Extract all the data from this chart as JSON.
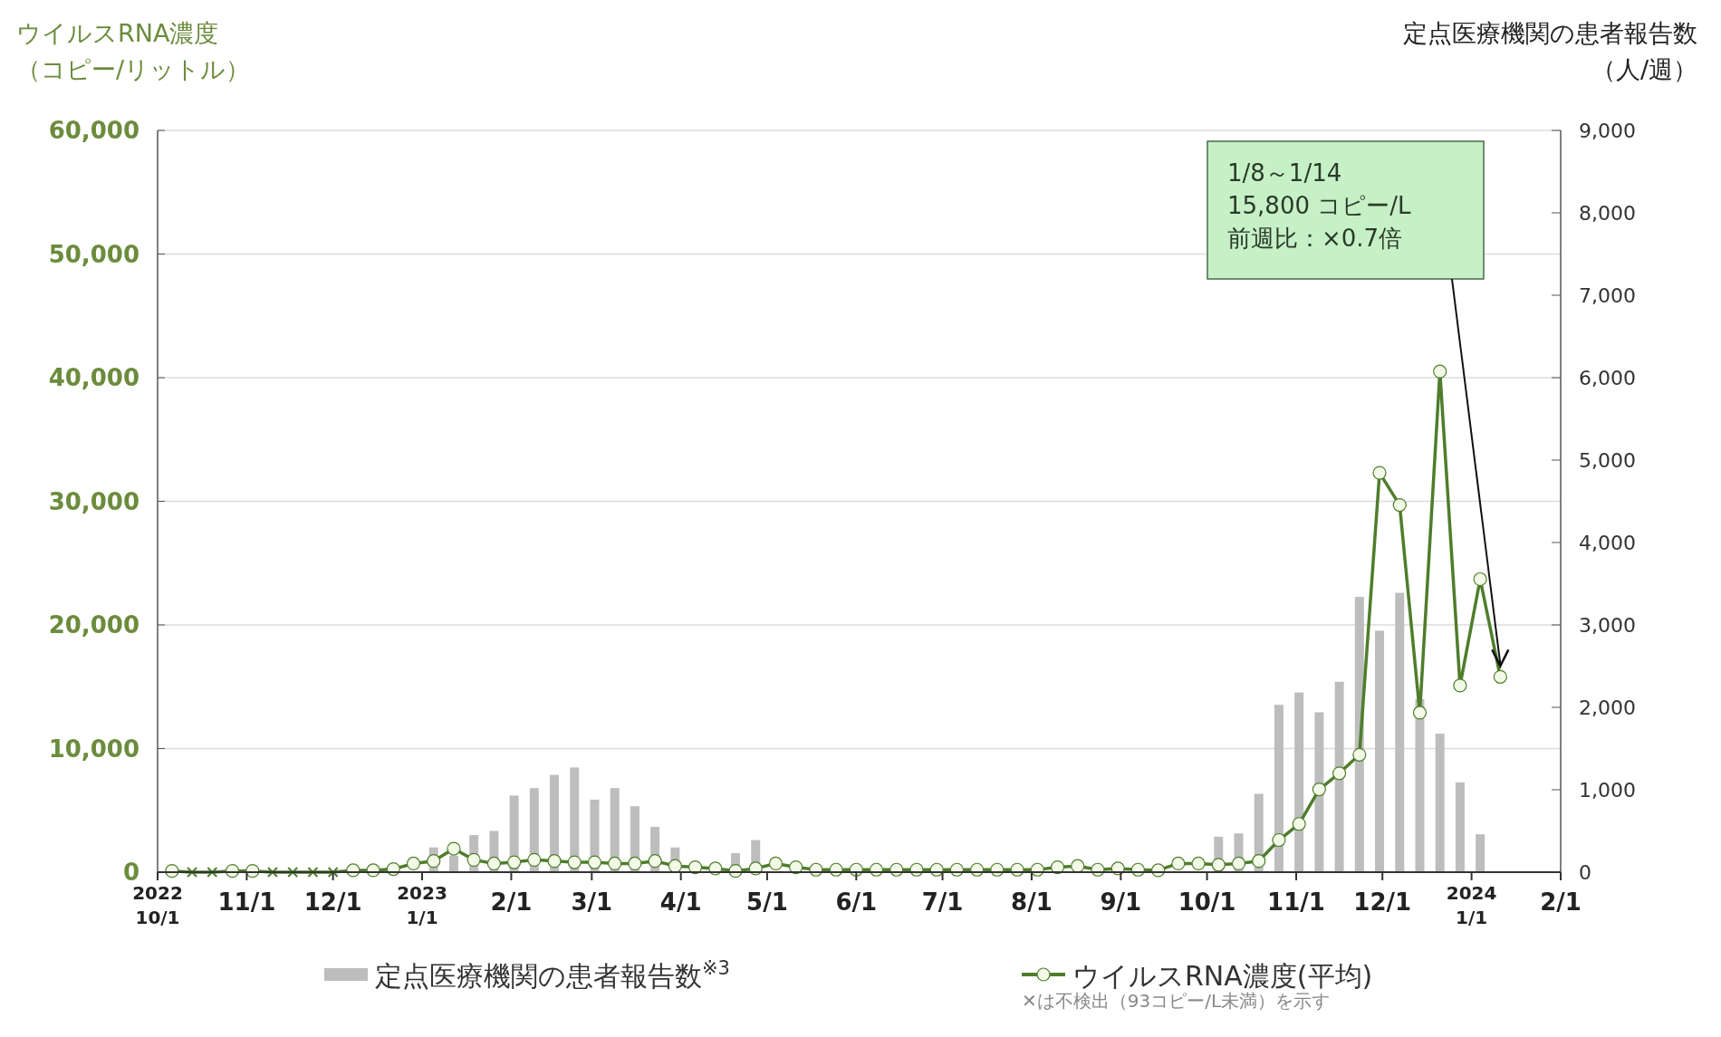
{
  "chart_data": {
    "type": "bar",
    "xlabel": null,
    "ylabel": "ウイルスRNA濃度（コピー/リットル）",
    "y2label": "定点医療機関の患者報告数（人/週）",
    "x": [
      "2022-10-06",
      "2022-10-13",
      "2022-10-20",
      "2022-10-27",
      "2022-11-03",
      "2022-11-10",
      "2022-11-17",
      "2022-11-24",
      "2022-12-01",
      "2022-12-08",
      "2022-12-15",
      "2022-12-22",
      "2022-12-29",
      "2023-01-05",
      "2023-01-12",
      "2023-01-19",
      "2023-01-26",
      "2023-02-02",
      "2023-02-09",
      "2023-02-16",
      "2023-02-23",
      "2023-03-02",
      "2023-03-09",
      "2023-03-16",
      "2023-03-23",
      "2023-03-30",
      "2023-04-06",
      "2023-04-13",
      "2023-04-20",
      "2023-04-27",
      "2023-05-04",
      "2023-05-11",
      "2023-05-18",
      "2023-05-25",
      "2023-06-01",
      "2023-06-08",
      "2023-06-15",
      "2023-06-22",
      "2023-06-29",
      "2023-07-06",
      "2023-07-13",
      "2023-07-20",
      "2023-07-27",
      "2023-08-03",
      "2023-08-10",
      "2023-08-17",
      "2023-08-24",
      "2023-08-31",
      "2023-09-07",
      "2023-09-14",
      "2023-09-21",
      "2023-09-28",
      "2023-10-05",
      "2023-10-12",
      "2023-10-19",
      "2023-10-26",
      "2023-11-02",
      "2023-11-09",
      "2023-11-16",
      "2023-11-23",
      "2023-11-30",
      "2023-12-07",
      "2023-12-14",
      "2023-12-21",
      "2023-12-28",
      "2024-01-04",
      "2024-01-11"
    ],
    "series": [
      {
        "name": "定点医療機関の患者報告数$^{※3}$",
        "axis": "y2",
        "color": "#bdbdbd",
        "values": [
          0,
          0,
          0,
          0,
          0,
          0,
          0,
          0,
          0,
          0,
          0,
          0,
          0,
          300,
          200,
          450,
          500,
          930,
          1020,
          1180,
          1270,
          880,
          1020,
          800,
          550,
          300,
          0,
          0,
          230,
          390,
          0,
          0,
          0,
          0,
          0,
          0,
          0,
          0,
          0,
          0,
          0,
          0,
          0,
          0,
          0,
          0,
          0,
          0,
          0,
          0,
          0,
          0,
          430,
          470,
          950,
          2030,
          2180,
          1940,
          2310,
          3340,
          2930,
          3390,
          2100,
          1680,
          1090,
          460,
          0
        ]
      },
      {
        "name": "ウイルスRNA濃度(平均)",
        "type": "line",
        "marker": "circle",
        "color": "#4f7d2c",
        "values": [
          100,
          0,
          0,
          100,
          100,
          0,
          0,
          0,
          0,
          150,
          150,
          250,
          700,
          900,
          1900,
          1000,
          700,
          800,
          1000,
          900,
          800,
          800,
          700,
          700,
          900,
          500,
          400,
          300,
          100,
          300,
          700,
          400,
          200,
          200,
          200,
          200,
          200,
          200,
          200,
          200,
          200,
          200,
          200,
          200,
          400,
          500,
          200,
          300,
          200,
          150,
          700,
          700,
          600,
          700,
          900,
          2600,
          3900,
          6700,
          8000,
          9500,
          32300,
          29700,
          12900,
          40500,
          15100,
          23700,
          15800
        ]
      },
      {
        "type": "scatter",
        "marker": "cross",
        "color": "#4f7d2c",
        "x": [
          "2022-10-13",
          "2022-10-20",
          "2022-11-10",
          "2022-11-17",
          "2022-11-24",
          "2022-12-01"
        ],
        "values": [
          0,
          0,
          0,
          0,
          0,
          0
        ]
      }
    ],
    "xlim": [
      "2022-10-01",
      "2024-02-01"
    ],
    "xticks": [
      {
        "value": "2022-10-01",
        "label": "2022\n10/1"
      },
      {
        "value": "2022-11-01",
        "label": "11/1"
      },
      {
        "value": "2022-12-01",
        "label": "12/1"
      },
      {
        "value": "2023-01-01",
        "label": "2023\n1/1"
      },
      {
        "value": "2023-02-01",
        "label": "2/1"
      },
      {
        "value": "2023-03-01",
        "label": "3/1"
      },
      {
        "value": "2023-04-01",
        "label": "4/1"
      },
      {
        "value": "2023-05-01",
        "label": "5/1"
      },
      {
        "value": "2023-06-01",
        "label": "6/1"
      },
      {
        "value": "2023-07-01",
        "label": "7/1"
      },
      {
        "value": "2023-08-01",
        "label": "8/1"
      },
      {
        "value": "2023-09-01",
        "label": "9/1"
      },
      {
        "value": "2023-10-01",
        "label": "10/1"
      },
      {
        "value": "2023-11-01",
        "label": "11/1"
      },
      {
        "value": "2023-12-01",
        "label": "12/1"
      },
      {
        "value": "2024-01-01",
        "label": "2024\n1/1"
      },
      {
        "value": "2024-02-01",
        "label": "2/1"
      }
    ],
    "ylim": [
      0,
      60000
    ],
    "yticks": [
      0,
      {
        "value": 10000,
        "label": "10,000"
      },
      {
        "value": 20000,
        "label": "20,000"
      },
      {
        "value": 30000,
        "label": "30,000"
      },
      {
        "value": 40000,
        "label": "40,000"
      },
      {
        "value": 50000,
        "label": "50,000"
      },
      {
        "value": 60000,
        "label": "60,000"
      }
    ],
    "y2lim": [
      0,
      9000
    ],
    "y2ticks": [
      0,
      {
        "value": 1000,
        "label": "1,000"
      },
      {
        "value": 2000,
        "label": "2,000"
      },
      {
        "value": 3000,
        "label": "3,000"
      },
      {
        "value": 4000,
        "label": "4,000"
      },
      {
        "value": 5000,
        "label": "5,000"
      },
      {
        "value": 6000,
        "label": "6,000"
      },
      {
        "value": 7000,
        "label": "7,000"
      },
      {
        "value": 8000,
        "label": "8,000"
      },
      {
        "value": 9000,
        "label": "9,000"
      }
    ],
    "grid": "y",
    "legend": "bottom",
    "annotations": [
      "1/8～1/14\n15,800 コピー/L\n前週比：×0.7倍",
      "✕は不検出（93コピー/L未満）を示す"
    ]
  }
}
